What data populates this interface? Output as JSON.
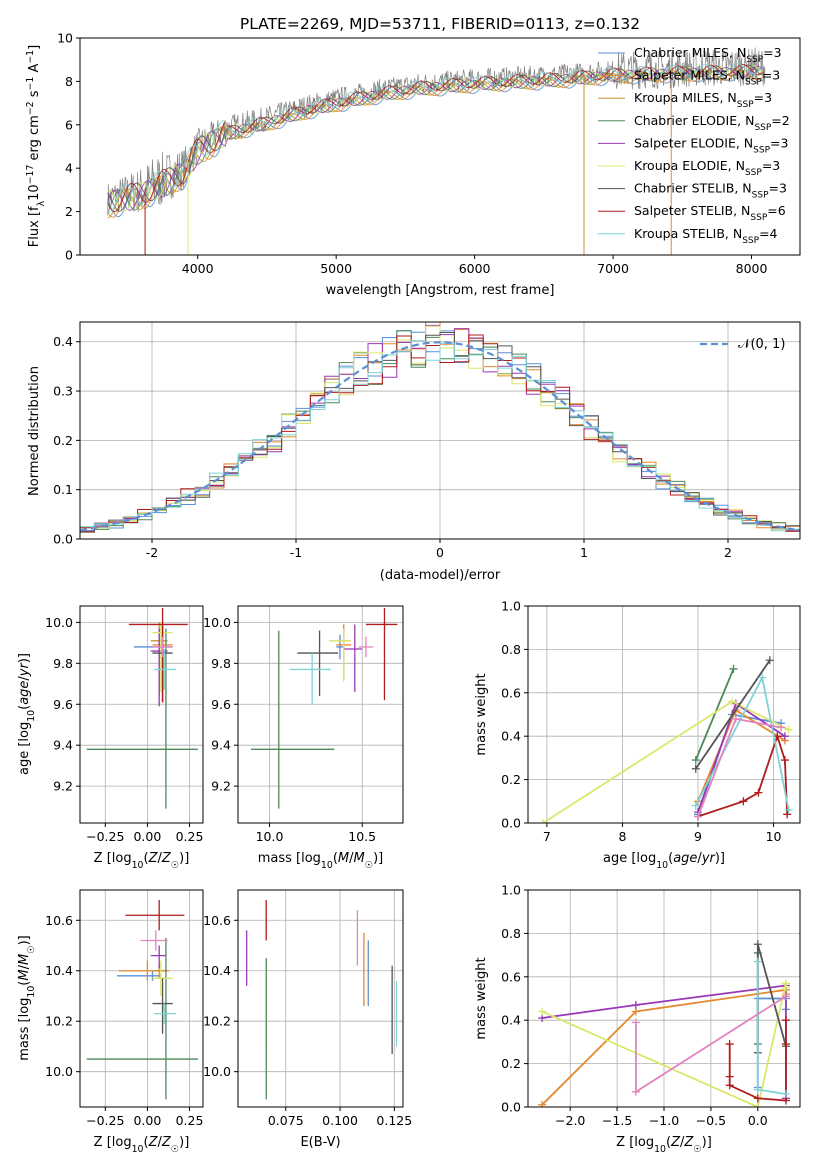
{
  "chart_data": [
    {
      "type": "line",
      "title": "PLATE=2269, MJD=53711, FIBERID=0113, z=0.132",
      "xlabel": "wavelength [Angstrom, rest frame]",
      "ylabel": "Flux [fλ10⁻¹⁷ erg cm⁻² s⁻¹ A⁻¹]",
      "xlim": [
        3150,
        8350
      ],
      "ylim": [
        0,
        10
      ],
      "xticks": [
        4000,
        5000,
        6000,
        7000,
        8000
      ],
      "yticks": [
        0,
        2,
        4,
        6,
        8,
        10
      ],
      "grid": false,
      "legend": "top-right",
      "spectrum_anchor": {
        "x": [
          3350,
          3600,
          3900,
          4000,
          4200,
          4500,
          4800,
          5000,
          5300,
          5600,
          6000,
          6300,
          6600,
          7000,
          7500,
          8100
        ],
        "y": [
          2.6,
          3.0,
          4.0,
          5.0,
          5.8,
          6.3,
          6.9,
          7.2,
          7.6,
          7.9,
          8.1,
          8.2,
          8.3,
          8.5,
          8.6,
          8.7
        ]
      },
      "series": [
        {
          "name": "Chabrier MILES, N_SSP=3",
          "label_main": "Chabrier MILES, N",
          "label_sub": "SSP",
          "label_tail": "=3",
          "color": "#5b8fd6"
        },
        {
          "name": "Salpeter MILES, N_SSP=3",
          "label_main": "Salpeter MILES, N",
          "label_sub": "SSP",
          "label_tail": "=3",
          "color": "#e6882e"
        },
        {
          "name": "Kroupa MILES, N_SSP=3",
          "label_main": "Kroupa MILES, N",
          "label_sub": "SSP",
          "label_tail": "=3",
          "color": "#c8962a"
        },
        {
          "name": "Chabrier ELODIE, N_SSP=2",
          "label_main": "Chabrier ELODIE, N",
          "label_sub": "SSP",
          "label_tail": "=2",
          "color": "#4d8a5a"
        },
        {
          "name": "Salpeter ELODIE, N_SSP=3",
          "label_main": "Salpeter ELODIE, N",
          "label_sub": "SSP",
          "label_tail": "=3",
          "color": "#9b38b5"
        },
        {
          "name": "Kroupa ELODIE, N_SSP=3",
          "label_main": "Kroupa ELODIE, N",
          "label_sub": "SSP",
          "label_tail": "=3",
          "color": "#d9e86a"
        },
        {
          "name": "Chabrier STELIB, N_SSP=3",
          "label_main": "Chabrier STELIB, N",
          "label_sub": "SSP",
          "label_tail": "=3",
          "color": "#555555"
        },
        {
          "name": "Salpeter STELIB, N_SSP=6",
          "label_main": "Salpeter STELIB, N",
          "label_sub": "SSP",
          "label_tail": "=6",
          "color": "#b01c1c"
        },
        {
          "name": "Kroupa STELIB, N_SSP=4",
          "label_main": "Kroupa STELIB, N",
          "label_sub": "SSP",
          "label_tail": "=4",
          "color": "#7ed3d6"
        }
      ]
    },
    {
      "type": "bar",
      "xlabel": "(data-model)/error",
      "ylabel": "Normed distribution",
      "xlim": [
        -2.5,
        2.5
      ],
      "ylim": [
        0,
        0.44
      ],
      "xticks": [
        -2,
        -1,
        0,
        1,
        2
      ],
      "yticks": [
        0.0,
        0.1,
        0.2,
        0.3,
        0.4
      ],
      "grid": true,
      "legend": "top-right",
      "reference": {
        "name": "𝒩(0, 1)",
        "color": "#5b8fd6",
        "mean": 0,
        "sigma": 1
      },
      "bin_width": 0.1,
      "colors": [
        "#5b8fd6",
        "#e6882e",
        "#4d8a5a",
        "#9b38b5",
        "#d9e86a",
        "#555555",
        "#b01c1c",
        "#7ed3d6"
      ]
    },
    {
      "type": "scatter",
      "xlabel": "Z [log10(Z/Z☉)]",
      "ylabel": "age  [log10(age/yr)]",
      "xlim": [
        -0.4,
        0.33
      ],
      "ylim": [
        9.02,
        10.08
      ],
      "xticks": [
        -0.25,
        0.0,
        0.25
      ],
      "xticklabels": [
        "−0.25",
        "0.00",
        "0.25"
      ],
      "yticks": [
        9.2,
        9.4,
        9.6,
        9.8,
        10.0
      ],
      "grid": true,
      "points": [
        {
          "x": 0.09,
          "y": 9.88,
          "xerr": [
            0.17,
            0.06
          ],
          "yerr": [
            0.06,
            0.06
          ],
          "color": "#5b8fd6"
        },
        {
          "x": 0.09,
          "y": 9.89,
          "xerr": [
            0.06,
            0.06
          ],
          "yerr": [
            0.28,
            0.11
          ],
          "color": "#e6882e"
        },
        {
          "x": 0.07,
          "y": 9.91,
          "xerr": [
            0.05,
            0.05
          ],
          "yerr": [
            0.27,
            0.09
          ],
          "color": "#c8962a"
        },
        {
          "x": 0.11,
          "y": 9.38,
          "xerr": [
            0.47,
            0.19
          ],
          "yerr": [
            0.29,
            0.59
          ],
          "color": "#4d8a5a"
        },
        {
          "x": 0.07,
          "y": 9.86,
          "xerr": [
            0.05,
            0.05
          ],
          "yerr": [
            0.27,
            0.11
          ],
          "color": "#9b38b5"
        },
        {
          "x": 0.08,
          "y": 9.95,
          "xerr": [
            0.05,
            0.07
          ],
          "yerr": [
            0.29,
            0.05
          ],
          "color": "#d9e86a"
        },
        {
          "x": 0.09,
          "y": 9.85,
          "xerr": [
            0.06,
            0.06
          ],
          "yerr": [
            0.24,
            0.14
          ],
          "color": "#555555"
        },
        {
          "x": 0.09,
          "y": 9.99,
          "xerr": [
            0.2,
            0.15
          ],
          "yerr": [
            0.38,
            0.08
          ],
          "color": "#b01c1c"
        },
        {
          "x": 0.1,
          "y": 9.77,
          "xerr": [
            0.06,
            0.07
          ],
          "yerr": [
            0.1,
            0.1
          ],
          "color": "#7ed3d6"
        },
        {
          "x": 0.09,
          "y": 9.88,
          "xerr": [
            0.06,
            0.06
          ],
          "yerr": [
            0.05,
            0.05
          ],
          "color": "#e384c0"
        }
      ]
    },
    {
      "type": "scatter",
      "xlabel": "mass [log10(M/M☉)]",
      "ylabel": "",
      "xlim": [
        9.83,
        10.72
      ],
      "ylim": [
        9.02,
        10.08
      ],
      "xticks": [
        10.0,
        10.5
      ],
      "xticklabels": [
        "10.0",
        "10.5"
      ],
      "yticks": [
        9.2,
        9.4,
        9.6,
        9.8,
        10.0
      ],
      "grid": true,
      "points": [
        {
          "x": 10.38,
          "y": 9.88,
          "xerr": [
            0.02,
            0.02
          ],
          "yerr": [
            0.06,
            0.06
          ],
          "color": "#5b8fd6"
        },
        {
          "x": 10.4,
          "y": 9.89,
          "xerr": [
            0.04,
            0.04
          ],
          "yerr": [
            0.17,
            0.1
          ],
          "color": "#e6882e"
        },
        {
          "x": 10.4,
          "y": 9.91,
          "xerr": [
            0.03,
            0.03
          ],
          "yerr": [
            0.18,
            0.08
          ],
          "color": "#c8962a"
        },
        {
          "x": 10.05,
          "y": 9.38,
          "xerr": [
            0.15,
            0.3
          ],
          "yerr": [
            0.29,
            0.58
          ],
          "color": "#4d8a5a"
        },
        {
          "x": 10.46,
          "y": 9.87,
          "xerr": [
            0.06,
            0.04
          ],
          "yerr": [
            0.21,
            0.12
          ],
          "color": "#9b38b5"
        },
        {
          "x": 10.4,
          "y": 9.91,
          "xerr": [
            0.08,
            0.04
          ],
          "yerr": [
            0.2,
            0.06
          ],
          "color": "#d9e86a"
        },
        {
          "x": 10.27,
          "y": 9.85,
          "xerr": [
            0.12,
            0.1
          ],
          "yerr": [
            0.21,
            0.11
          ],
          "color": "#555555"
        },
        {
          "x": 10.62,
          "y": 9.99,
          "xerr": [
            0.1,
            0.07
          ],
          "yerr": [
            0.37,
            0.08
          ],
          "color": "#b01c1c"
        },
        {
          "x": 10.23,
          "y": 9.77,
          "xerr": [
            0.12,
            0.1
          ],
          "yerr": [
            0.17,
            0.08
          ],
          "color": "#7ed3d6"
        },
        {
          "x": 10.52,
          "y": 9.88,
          "xerr": [
            0.04,
            0.04
          ],
          "yerr": [
            0.05,
            0.05
          ],
          "color": "#e384c0"
        }
      ]
    },
    {
      "type": "line",
      "xlabel": "age  [log10(age/yr)]",
      "ylabel": "mass weight",
      "xlim": [
        6.75,
        10.35
      ],
      "ylim": [
        0,
        1.0
      ],
      "xticks": [
        7,
        8,
        9,
        10
      ],
      "yticks": [
        0.0,
        0.2,
        0.4,
        0.6,
        0.8,
        1.0
      ],
      "grid": true,
      "series": [
        {
          "color": "#5b8fd6",
          "x": [
            9.0,
            9.45,
            10.1
          ],
          "y": [
            0.04,
            0.5,
            0.46
          ]
        },
        {
          "color": "#e6882e",
          "x": [
            9.0,
            9.5,
            10.15
          ],
          "y": [
            0.1,
            0.52,
            0.38
          ]
        },
        {
          "color": "#4d8a5a",
          "x": [
            8.97,
            9.47
          ],
          "y": [
            0.29,
            0.71
          ]
        },
        {
          "color": "#9b38b5",
          "x": [
            9.0,
            9.5,
            10.15
          ],
          "y": [
            0.05,
            0.55,
            0.4
          ]
        },
        {
          "color": "#d9e86a",
          "x": [
            6.95,
            9.45,
            10.2
          ],
          "y": [
            0.0,
            0.56,
            0.43
          ]
        },
        {
          "color": "#555555",
          "x": [
            8.97,
            9.95
          ],
          "y": [
            0.25,
            0.75
          ]
        },
        {
          "color": "#b01c1c",
          "x": [
            9.0,
            9.6,
            9.8,
            10.05,
            10.15,
            10.18
          ],
          "y": [
            0.03,
            0.1,
            0.14,
            0.4,
            0.29,
            0.04
          ]
        },
        {
          "color": "#7ed3d6",
          "x": [
            8.97,
            9.85,
            10.2
          ],
          "y": [
            0.08,
            0.67,
            0.06
          ]
        },
        {
          "color": "#e384c0",
          "x": [
            9.0,
            9.5,
            10.1
          ],
          "y": [
            0.03,
            0.48,
            0.44
          ]
        }
      ]
    },
    {
      "type": "scatter",
      "xlabel": "Z [log10(Z/Z☉)]",
      "ylabel": "mass [log10(M/M☉)]",
      "xlim": [
        -0.4,
        0.33
      ],
      "ylim": [
        9.86,
        10.72
      ],
      "xticks": [
        -0.25,
        0.0,
        0.25
      ],
      "xticklabels": [
        "−0.25",
        "0.00",
        "0.25"
      ],
      "yticks": [
        10.0,
        10.2,
        10.4,
        10.6
      ],
      "grid": true,
      "points": [
        {
          "x": 0.03,
          "y": 10.38,
          "xerr": [
            0.21,
            0.05
          ],
          "yerr": [
            0.02,
            0.02
          ],
          "color": "#5b8fd6"
        },
        {
          "x": 0.0,
          "y": 10.4,
          "xerr": [
            0.17,
            0.13
          ],
          "yerr": [
            0.04,
            0.04
          ],
          "color": "#e6882e"
        },
        {
          "x": 0.07,
          "y": 10.4,
          "xerr": [
            0.04,
            0.04
          ],
          "yerr": [
            0.03,
            0.03
          ],
          "color": "#c8962a"
        },
        {
          "x": 0.11,
          "y": 10.05,
          "xerr": [
            0.47,
            0.19
          ],
          "yerr": [
            0.16,
            0.48
          ],
          "color": "#4d8a5a"
        },
        {
          "x": 0.07,
          "y": 10.46,
          "xerr": [
            0.05,
            0.04
          ],
          "yerr": [
            0.05,
            0.04
          ],
          "color": "#9b38b5"
        },
        {
          "x": 0.08,
          "y": 10.37,
          "xerr": [
            0.05,
            0.07
          ],
          "yerr": [
            0.07,
            0.07
          ],
          "color": "#d9e86a"
        },
        {
          "x": 0.09,
          "y": 10.27,
          "xerr": [
            0.06,
            0.06
          ],
          "yerr": [
            0.12,
            0.1
          ],
          "color": "#555555"
        },
        {
          "x": 0.07,
          "y": 10.62,
          "xerr": [
            0.2,
            0.15
          ],
          "yerr": [
            0.06,
            0.06
          ],
          "color": "#b01c1c"
        },
        {
          "x": 0.1,
          "y": 10.23,
          "xerr": [
            0.06,
            0.07
          ],
          "yerr": [
            0.04,
            0.04
          ],
          "color": "#7ed3d6"
        },
        {
          "x": 0.05,
          "y": 10.52,
          "xerr": [
            0.09,
            0.07
          ],
          "yerr": [
            0.04,
            0.04
          ],
          "color": "#e384c0"
        }
      ]
    },
    {
      "type": "scatter",
      "xlabel": "E(B-V)",
      "ylabel": "",
      "xlim": [
        0.053,
        0.129
      ],
      "ylim": [
        9.86,
        10.72
      ],
      "xticks": [
        0.075,
        0.1,
        0.125
      ],
      "xticklabels": [
        "0.075",
        "0.100",
        "0.125"
      ],
      "yticks": [
        10.0,
        10.2,
        10.4,
        10.6
      ],
      "grid": true,
      "points": [
        {
          "x": 0.057,
          "y": 10.45,
          "xerr": [
            0,
            0
          ],
          "yerr": [
            0.11,
            0.11
          ],
          "color": "#9b38b5"
        },
        {
          "x": 0.066,
          "y": 10.23,
          "xerr": [
            0,
            0
          ],
          "yerr": [
            0.15,
            0.21
          ],
          "color": "#d9e86a"
        },
        {
          "x": 0.066,
          "y": 10.05,
          "xerr": [
            0,
            0
          ],
          "yerr": [
            0.16,
            0.4
          ],
          "color": "#4d8a5a"
        },
        {
          "x": 0.066,
          "y": 10.58,
          "xerr": [
            0,
            0
          ],
          "yerr": [
            0.06,
            0.1
          ],
          "color": "#b01c1c"
        },
        {
          "x": 0.108,
          "y": 10.52,
          "xerr": [
            0,
            0
          ],
          "yerr": [
            0.1,
            0.12
          ],
          "color": "#e384c0"
        },
        {
          "x": 0.111,
          "y": 10.4,
          "xerr": [
            0,
            0
          ],
          "yerr": [
            0.14,
            0.15
          ],
          "color": "#e6882e"
        },
        {
          "x": 0.113,
          "y": 10.38,
          "xerr": [
            0,
            0
          ],
          "yerr": [
            0.12,
            0.14
          ],
          "color": "#5b8fd6"
        },
        {
          "x": 0.124,
          "y": 10.23,
          "xerr": [
            0,
            0
          ],
          "yerr": [
            0.16,
            0.19
          ],
          "color": "#555555"
        },
        {
          "x": 0.126,
          "y": 10.22,
          "xerr": [
            0,
            0
          ],
          "yerr": [
            0.12,
            0.14
          ],
          "color": "#7ed3d6"
        }
      ]
    },
    {
      "type": "line",
      "xlabel": "Z [log10(Z/Z☉)]",
      "ylabel": "mass weight",
      "xlim": [
        -2.45,
        0.45
      ],
      "ylim": [
        0,
        1.0
      ],
      "xticks": [
        -2.0,
        -1.5,
        -1.0,
        -0.5,
        0.0,
        0.5
      ],
      "xticklabels": [
        "−2.0",
        "−1.5",
        "−1.0",
        "−0.5",
        "0.0",
        "0.5"
      ],
      "yticks": [
        0.0,
        0.2,
        0.4,
        0.6,
        0.8,
        1.0
      ],
      "grid": true,
      "series": [
        {
          "color": "#5b8fd6",
          "x": [
            0.0,
            0.0,
            0.3,
            0.3
          ],
          "y": [
            0.09,
            0.5,
            0.5,
            0.45
          ]
        },
        {
          "color": "#e6882e",
          "x": [
            -2.3,
            -1.3,
            0.3,
            0.3
          ],
          "y": [
            0.01,
            0.44,
            0.54,
            0.52
          ]
        },
        {
          "color": "#4d8a5a",
          "x": [
            0.0,
            0.0
          ],
          "y": [
            0.29,
            0.71
          ]
        },
        {
          "color": "#9b38b5",
          "x": [
            -2.3,
            -1.3,
            0.3,
            0.3
          ],
          "y": [
            0.41,
            0.47,
            0.56,
            0.04
          ]
        },
        {
          "color": "#d9e86a",
          "x": [
            -2.3,
            0.0,
            0.3,
            0.3
          ],
          "y": [
            0.44,
            0.0,
            0.57,
            0.55
          ]
        },
        {
          "color": "#555555",
          "x": [
            0.0,
            0.0,
            0.3
          ],
          "y": [
            0.25,
            0.75,
            0.28
          ]
        },
        {
          "color": "#b01c1c",
          "x": [
            -0.3,
            -0.3,
            -0.3,
            0.0,
            0.3,
            0.3,
            0.3
          ],
          "y": [
            0.29,
            0.14,
            0.1,
            0.04,
            0.03,
            0.4,
            0.29
          ]
        },
        {
          "color": "#7ed3d6",
          "x": [
            0.0,
            0.0,
            0.3
          ],
          "y": [
            0.67,
            0.08,
            0.06
          ]
        },
        {
          "color": "#e384c0",
          "x": [
            -1.3,
            -1.3,
            0.3
          ],
          "y": [
            0.39,
            0.07,
            0.51
          ]
        }
      ]
    }
  ]
}
